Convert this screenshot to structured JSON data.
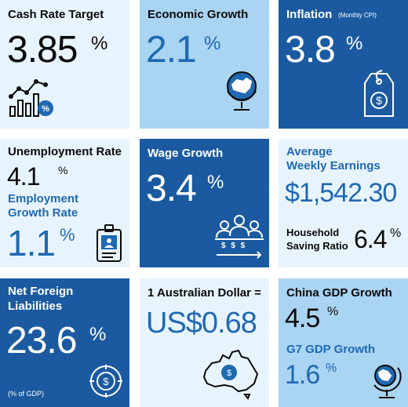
{
  "cash_rate": {
    "label": "Cash Rate Target",
    "value": "3.85",
    "unit": "%"
  },
  "economic_growth": {
    "label": "Economic Growth",
    "value": "2.1",
    "unit": "%"
  },
  "inflation": {
    "label": "Inflation",
    "sublabel": "(Monthly CPI)",
    "value": "3.8",
    "unit": "%"
  },
  "unemployment": {
    "label": "Unemployment Rate",
    "value": "4.1",
    "unit": "%",
    "employment_label_1": "Employment",
    "employment_label_2": "Growth Rate",
    "employment_value": "1.1",
    "employment_unit": "%"
  },
  "wage_growth": {
    "label": "Wage Growth",
    "value": "3.4",
    "unit": "%",
    "icon_dollars": "$ $ $"
  },
  "earnings": {
    "label_1": "Average",
    "label_2": "Weekly Earnings",
    "value": "$1,542.30",
    "saving_label_1": "Household",
    "saving_label_2": "Saving Ratio",
    "saving_value": "6.4",
    "saving_unit": "%"
  },
  "liabilities": {
    "label_1": "Net Foreign",
    "label_2": "Liabilities",
    "value": "23.6",
    "unit": "%",
    "note": "(% of GDP)"
  },
  "aud": {
    "label": "1 Australian Dollar =",
    "value": "US$0.68"
  },
  "china_gdp": {
    "label": "China GDP Growth",
    "value": "4.5",
    "unit": "%",
    "g7_label": "G7 GDP Growth",
    "g7_value": "1.6",
    "g7_unit": "%"
  },
  "colors": {
    "dark_tile": "#1b5aa0",
    "mid_tile": "#a9d4f2",
    "light_tile": "#e8f4fd",
    "accent": "#2069b3"
  },
  "icons": [
    "bar-chart-icon",
    "globe-icon",
    "price-tag-icon",
    "id-badge-icon",
    "team-icon",
    "dollar-coin-icon",
    "australia-map-icon",
    "desk-globe-icon"
  ]
}
